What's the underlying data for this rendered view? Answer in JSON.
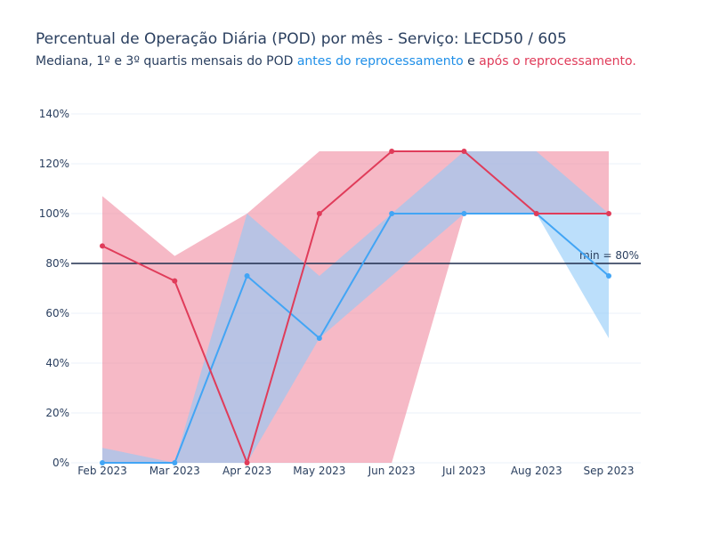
{
  "title": "Percentual de Operação Diária (POD) por mês - Serviço: LECD50 / 605",
  "subtitle": {
    "prefix": "Mediana, 1º e 3º quartis mensais do POD ",
    "before": "antes do reprocessamento",
    "middle": " e ",
    "after": "após o reprocessamento",
    "suffix": "."
  },
  "colors": {
    "before_line": "#42a5f5",
    "before_band": "#90caf9",
    "after_line": "#e03c5a",
    "after_band": "#f08aa0",
    "threshold": "#1f2d4d"
  },
  "chart_data": {
    "type": "line",
    "categories": [
      "Feb 2023",
      "Mar 2023",
      "Apr 2023",
      "May 2023",
      "Jun 2023",
      "Jul 2023",
      "Aug 2023",
      "Sep 2023"
    ],
    "series": [
      {
        "key": "before",
        "median": [
          0,
          0,
          75,
          50,
          100,
          100,
          100,
          75
        ],
        "q1": [
          0,
          0,
          0,
          50,
          75,
          100,
          100,
          50
        ],
        "q3": [
          6,
          0,
          100,
          75,
          100,
          125,
          125,
          100
        ]
      },
      {
        "key": "after",
        "median": [
          87,
          73,
          0,
          100,
          125,
          125,
          100,
          100
        ],
        "q1": [
          0,
          0,
          0,
          0,
          0,
          100,
          100,
          100
        ],
        "q3": [
          107,
          83,
          100,
          125,
          125,
          125,
          125,
          125
        ]
      }
    ],
    "ylim": [
      0,
      140
    ],
    "yticks": [
      0,
      20,
      40,
      60,
      80,
      100,
      120,
      140
    ],
    "ytick_labels": [
      "0%",
      "20%",
      "40%",
      "60%",
      "80%",
      "100%",
      "120%",
      "140%"
    ],
    "threshold": {
      "value": 80,
      "label": "min = 80%"
    },
    "grid": true,
    "legend": "none"
  }
}
